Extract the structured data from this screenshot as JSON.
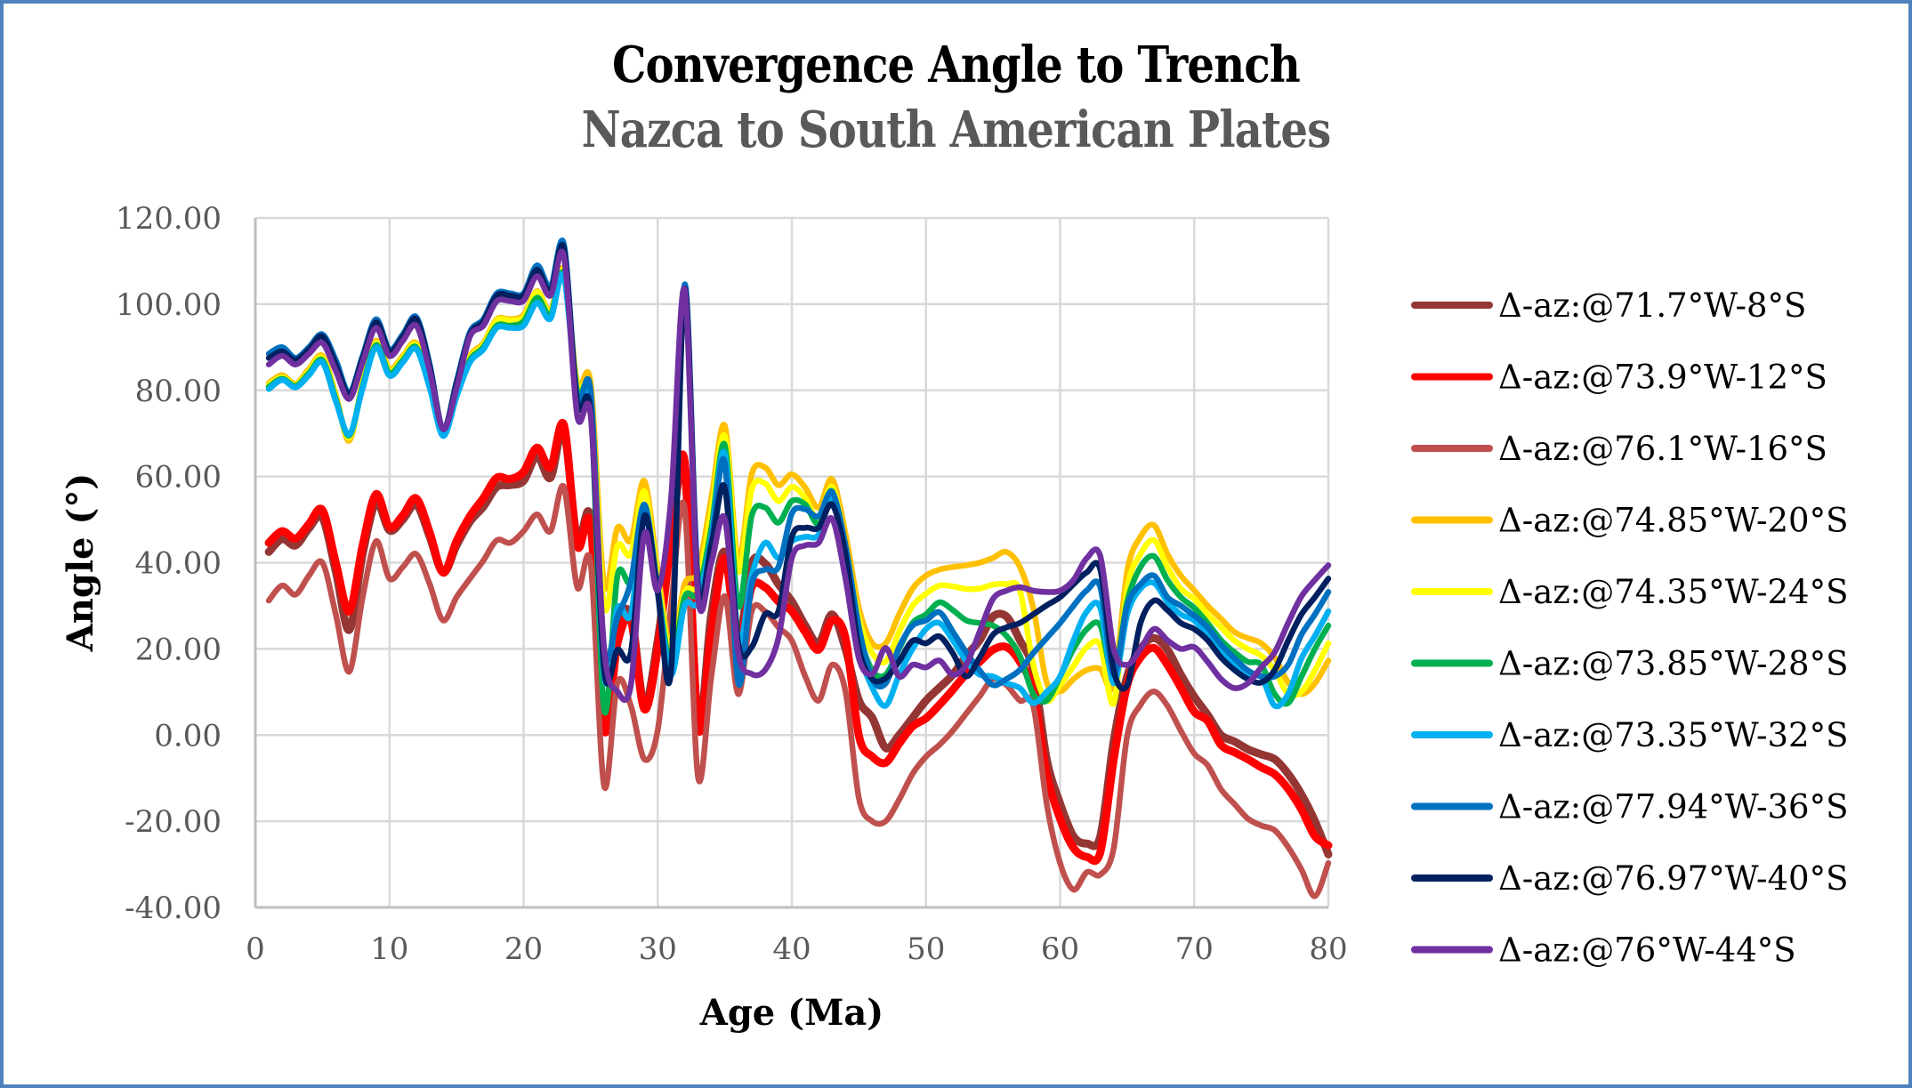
{
  "chart_data": {
    "type": "line",
    "title": "Convergence Angle to Trench",
    "subtitle": "Nazca to South American Plates",
    "xlabel": "Age (Ma)",
    "ylabel": "Angle (°)",
    "xlim": [
      0,
      80
    ],
    "ylim": [
      -40,
      120
    ],
    "xticks": [
      0,
      10,
      20,
      30,
      40,
      50,
      60,
      70,
      80
    ],
    "xtick_labels": [
      "0",
      "10",
      "20",
      "30",
      "40",
      "50",
      "60",
      "70",
      "80"
    ],
    "yticks": [
      -40,
      -20,
      0,
      20,
      40,
      60,
      80,
      100,
      120
    ],
    "ytick_labels": [
      "-40.00",
      "-20.00",
      "0.00",
      "20.00",
      "40.00",
      "60.00",
      "80.00",
      "100.00",
      "120.00"
    ],
    "grid": true,
    "legend_position": "right",
    "x": [
      1,
      2,
      3,
      4,
      5,
      6,
      7,
      8,
      9,
      10,
      11,
      12,
      13,
      14,
      15,
      16,
      17,
      18,
      19,
      20,
      21,
      22,
      23,
      24,
      25,
      26,
      27,
      28,
      29,
      30,
      31,
      32,
      33,
      34,
      35,
      36,
      37,
      38,
      39,
      40,
      41,
      42,
      43,
      44,
      45,
      46,
      47,
      48,
      49,
      50,
      51,
      52,
      53,
      54,
      55,
      56,
      57,
      58,
      59,
      60,
      61,
      62,
      63,
      64,
      65,
      66,
      67,
      68,
      69,
      70,
      71,
      72,
      73,
      74,
      75,
      76,
      77,
      78,
      79,
      80
    ],
    "series": [
      {
        "name": "Δ-az:@71.7°W-8°S",
        "color": "#943634",
        "values": [
          42.5,
          45.5,
          44,
          48,
          50.5,
          38,
          24.4,
          42,
          54,
          47.5,
          50,
          53.5,
          46,
          37.7,
          44,
          49.5,
          53,
          57.6,
          58,
          59,
          64.8,
          59.7,
          70.8,
          45.2,
          50.2,
          3,
          24.6,
          28,
          7,
          22,
          45,
          62,
          3,
          28,
          42.5,
          22,
          39.8,
          39.8,
          35,
          31,
          25.4,
          21.3,
          28,
          20,
          8,
          4,
          -3,
          0,
          4,
          8,
          11,
          14,
          18.4,
          22,
          27.5,
          27.5,
          22,
          15.1,
          -5.6,
          -15.9,
          -23.5,
          -25.2,
          -23.5,
          -1.4,
          13.6,
          20,
          22.5,
          19.8,
          14,
          8.9,
          4.7,
          0,
          -1.5,
          -3.3,
          -4.5,
          -5.6,
          -9,
          -13.8,
          -20,
          -27.7
        ]
      },
      {
        "name": "Δ-az:@73.9°W-12°S",
        "color": "#FF0000",
        "values": [
          44.6,
          47.3,
          45.6,
          49,
          52.2,
          40,
          28.7,
          44,
          55.9,
          48.3,
          51,
          54.9,
          47,
          37.7,
          45,
          50.8,
          55,
          59.7,
          59.4,
          61.1,
          66.7,
          62.1,
          72,
          44,
          48.7,
          1.2,
          21.3,
          26.6,
          6,
          20,
          45,
          63.6,
          1.9,
          23.9,
          41.1,
          20.4,
          34.3,
          34.3,
          31,
          28.7,
          23.9,
          19.8,
          26.6,
          22.5,
          -0.2,
          -5,
          -6.4,
          -2,
          2,
          3.9,
          7,
          10.5,
          14.2,
          17,
          19.8,
          20.4,
          17,
          10.1,
          -9.1,
          -19.4,
          -26.2,
          -28.3,
          -27.2,
          -5.6,
          11.6,
          18,
          20.2,
          16.3,
          11,
          5.4,
          3.3,
          -2.3,
          -4,
          -5.6,
          -7.5,
          -9.1,
          -12.5,
          -17.3,
          -23.5,
          -25.6
        ]
      },
      {
        "name": "Δ-az:@76.1°W-16°S",
        "color": "#C0504D",
        "values": [
          31.2,
          34.7,
          32.6,
          37,
          40,
          28,
          14.7,
          32,
          45,
          36.3,
          39,
          42,
          35,
          26.6,
          32,
          36.3,
          40.5,
          45.2,
          44.6,
          47.3,
          51.2,
          47.3,
          57.6,
          34.3,
          39.8,
          -11.8,
          12.2,
          6.8,
          -5.6,
          1.2,
          30,
          52.8,
          -9.7,
          13.6,
          32.2,
          9.5,
          28.7,
          28.7,
          25,
          21.9,
          13.6,
          8,
          16.3,
          10.1,
          -14.7,
          -20,
          -20,
          -15,
          -9,
          -5,
          -2.3,
          1,
          5,
          9,
          13,
          11.6,
          8,
          6.8,
          -15.9,
          -29.7,
          -35.9,
          -31.8,
          -32.4,
          -26.2,
          -0.2,
          7,
          10.1,
          6.8,
          1,
          -4.3,
          -7,
          -12.6,
          -16,
          -19.4,
          -21,
          -22.1,
          -26,
          -31.2,
          -37.4,
          -29.7
        ]
      },
      {
        "name": "Δ-az:@74.85°W-20°S",
        "color": "#FFC000",
        "values": [
          81.7,
          83.5,
          81.5,
          85,
          88,
          79,
          68.3,
          82,
          91.5,
          85,
          88,
          91,
          82,
          70,
          80,
          88,
          91,
          96.5,
          96.5,
          97.5,
          103,
          98.5,
          108,
          81.7,
          81.7,
          35,
          48.1,
          45.2,
          59,
          38,
          20,
          35,
          38,
          55,
          71.8,
          40.5,
          60.5,
          62.1,
          58,
          60.5,
          57.4,
          52.8,
          59.4,
          46.7,
          29.5,
          21.3,
          21.3,
          28,
          34,
          37,
          38.4,
          39,
          39.4,
          40,
          41.1,
          42.5,
          39,
          29.5,
          12.2,
          10.1,
          13,
          15.1,
          15.3,
          11.6,
          38,
          46,
          48.7,
          42,
          37,
          33.6,
          30,
          27,
          23.9,
          22.5,
          21.3,
          18,
          12.2,
          9.5,
          12,
          17.3
        ]
      },
      {
        "name": "Δ-az:@74.35°W-24°S",
        "color": "#FFFF00",
        "values": [
          81.2,
          83,
          81.2,
          84.5,
          87.5,
          78.5,
          69,
          81.5,
          91,
          84.5,
          87.5,
          90.5,
          81.5,
          69.8,
          79.5,
          87.5,
          90.5,
          96.2,
          96.2,
          97,
          102.8,
          98,
          107.5,
          81,
          79,
          30,
          44,
          42,
          56.6,
          36,
          18,
          33,
          35,
          52,
          69.4,
          38,
          57,
          58.4,
          54.3,
          57.6,
          55,
          50,
          57.6,
          44,
          27,
          19,
          17.1,
          24,
          30,
          32.8,
          34.7,
          34.5,
          33.9,
          34,
          34.9,
          35,
          33.6,
          16.3,
          8,
          11.6,
          16,
          20.4,
          20.8,
          7.4,
          34,
          42,
          45.2,
          39,
          34,
          31.6,
          28,
          25,
          21.9,
          20,
          18.4,
          15,
          9.5,
          10.1,
          15,
          21.3
        ]
      },
      {
        "name": "Δ-az:@73.85°W-28°S",
        "color": "#00B050",
        "values": [
          80.8,
          82.7,
          81,
          84,
          87,
          78,
          69.5,
          81,
          90.5,
          84,
          87,
          90,
          81,
          69.6,
          79,
          87,
          90,
          95,
          95,
          96,
          101.5,
          97.5,
          107,
          79.5,
          77,
          6,
          37,
          35.7,
          53,
          34,
          16,
          32,
          33,
          48,
          67.3,
          30,
          50.8,
          52.8,
          49.3,
          54.3,
          53.5,
          49,
          56.6,
          42,
          24,
          15,
          14,
          20,
          26,
          28,
          30.8,
          29,
          26.6,
          26,
          25.4,
          23,
          18.4,
          9.5,
          8,
          13.6,
          20,
          24.6,
          25.4,
          13.6,
          31,
          39,
          41.5,
          36,
          32,
          29.5,
          26,
          22,
          19.2,
          17,
          16.3,
          9.5,
          7.4,
          13.6,
          20,
          25.4
        ]
      },
      {
        "name": "Δ-az:@73.35°W-32°S",
        "color": "#00B0F0",
        "values": [
          80.3,
          82.4,
          80.7,
          83.5,
          86.5,
          77.5,
          69.8,
          80.5,
          90,
          83.4,
          86.5,
          89.6,
          80.5,
          69.4,
          78.5,
          86.5,
          89.5,
          94.5,
          94.5,
          95,
          100.3,
          96.6,
          106.5,
          78.2,
          77,
          13.6,
          29.5,
          28,
          51,
          33,
          14,
          30,
          30.8,
          46,
          65.2,
          22,
          37,
          44.6,
          41.1,
          45,
          46,
          46.5,
          55,
          40,
          20,
          11,
          6.8,
          14,
          20,
          24.6,
          26,
          22,
          17.1,
          14,
          13.6,
          12,
          10.9,
          7.4,
          10,
          13.6,
          22,
          28.7,
          29.5,
          12,
          28,
          34,
          35.3,
          31,
          28,
          26.6,
          23,
          19,
          16.3,
          14,
          13.6,
          6.8,
          9.5,
          17.8,
          23,
          28.7
        ]
      },
      {
        "name": "Δ-az:@77.94°W-36°S",
        "color": "#0070C0",
        "values": [
          88.5,
          90,
          87.5,
          90,
          93,
          87,
          79.5,
          88,
          96.5,
          89.5,
          93,
          97,
          86,
          71,
          82,
          93.5,
          96.5,
          102.5,
          102.5,
          102.5,
          109,
          104,
          114,
          78.2,
          79.7,
          20,
          27.5,
          35.7,
          53.5,
          34,
          15,
          104.5,
          35.7,
          45,
          63.2,
          12.2,
          34.9,
          38.4,
          39,
          51.4,
          52.4,
          50.8,
          56.4,
          44,
          25,
          13,
          12,
          20.4,
          25.4,
          26.6,
          28.5,
          24,
          19.2,
          15,
          11.6,
          13,
          15.1,
          19,
          22.5,
          26,
          30,
          33.6,
          34.3,
          14,
          30,
          35,
          37,
          32,
          30,
          27.7,
          25,
          21,
          17.8,
          15,
          13.6,
          13.6,
          16.3,
          23.3,
          28,
          33.2
        ]
      },
      {
        "name": "Δ-az:@76.97°W-40°S",
        "color": "#002060",
        "values": [
          87.5,
          89,
          87,
          89.5,
          92.5,
          86,
          79,
          87.5,
          95.8,
          89,
          92.5,
          96.5,
          85.5,
          71,
          81.5,
          93,
          96,
          102,
          102,
          102,
          108,
          103,
          113,
          77,
          75,
          15,
          19.8,
          19.2,
          50.8,
          33,
          15,
          103.5,
          34,
          44,
          57.4,
          21.3,
          20.4,
          28,
          28.7,
          46,
          48.1,
          48.1,
          53.5,
          41.9,
          20,
          13,
          13.2,
          17.1,
          21.9,
          21.3,
          22.9,
          19,
          13.6,
          18,
          23.3,
          25,
          26,
          28,
          30.1,
          32,
          35,
          37.8,
          38.4,
          15,
          11.6,
          26,
          31.2,
          29,
          26,
          24.6,
          22,
          18,
          15.1,
          13,
          12.2,
          15.1,
          21.9,
          28,
          32,
          36.3
        ]
      },
      {
        "name": "Δ-az:@76°W-44°S",
        "color": "#7030A0",
        "values": [
          86,
          88,
          86,
          88.5,
          91,
          84.5,
          78,
          86.5,
          94.5,
          88,
          91.5,
          95,
          84.5,
          71,
          80.5,
          92.5,
          95,
          100.7,
          100.7,
          100.8,
          106.5,
          102,
          111.3,
          74.1,
          74.1,
          20,
          10.1,
          11.6,
          46.7,
          33.6,
          55,
          103.4,
          32.2,
          40,
          50.2,
          19.2,
          14.2,
          15.1,
          22.5,
          41.1,
          44,
          44.6,
          50.2,
          36.3,
          17.8,
          14.2,
          20.2,
          13.6,
          16.3,
          15.7,
          17.3,
          14,
          16.3,
          24,
          31.6,
          33.5,
          34.3,
          33.5,
          33.2,
          33.5,
          36,
          41.1,
          41.5,
          20,
          16.3,
          20,
          24.6,
          22,
          20,
          20.4,
          17,
          13,
          10.9,
          12,
          15.7,
          19.2,
          26,
          32.2,
          36,
          39.4
        ]
      }
    ]
  }
}
